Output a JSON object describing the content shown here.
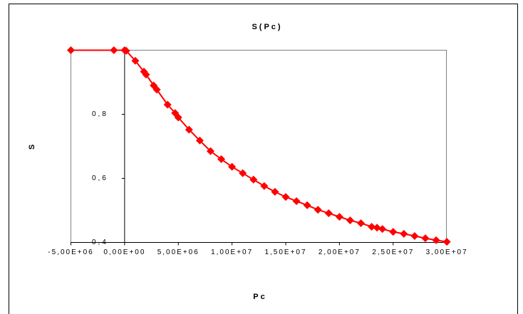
{
  "chart_data": {
    "type": "line",
    "title": "S(Pc)",
    "xlabel": "Pc",
    "ylabel": "S",
    "x": [
      -5000000,
      -1000000,
      0,
      150000,
      1000000,
      1800000,
      2000000,
      2700000,
      3000000,
      4000000,
      4700000,
      5000000,
      6000000,
      7000000,
      8000000,
      9000000,
      10000000,
      11000000,
      12000000,
      13000000,
      14000000,
      15000000,
      16000000,
      17000000,
      18000000,
      19000000,
      20000000,
      21000000,
      22000000,
      23000000,
      23500000,
      24000000,
      25000000,
      26000000,
      27000000,
      28000000,
      29000000,
      30000000
    ],
    "values": [
      1,
      1,
      1,
      0.998,
      0.967,
      0.933,
      0.924,
      0.89,
      0.877,
      0.83,
      0.804,
      0.79,
      0.752,
      0.718,
      0.685,
      0.66,
      0.636,
      0.616,
      0.596,
      0.576,
      0.558,
      0.542,
      0.529,
      0.516,
      0.502,
      0.491,
      0.48,
      0.469,
      0.46,
      0.449,
      0.446,
      0.442,
      0.433,
      0.427,
      0.42,
      0.413,
      0.407,
      0.402
    ],
    "color": "#ff0000",
    "xlim": [
      -5000000,
      35000000
    ],
    "ylim": [
      0.4,
      1.0
    ],
    "xticks": [
      {
        "value": -5000000,
        "label": "-5,00E+06"
      },
      {
        "value": 0,
        "label": "0,00E+00"
      },
      {
        "value": 5000000,
        "label": "5,00E+06"
      },
      {
        "value": 10000000,
        "label": "1,00E+07"
      },
      {
        "value": 15000000,
        "label": "1,50E+07"
      },
      {
        "value": 20000000,
        "label": "2,00E+07"
      },
      {
        "value": 25000000,
        "label": "2,50E+07"
      },
      {
        "value": 30000000,
        "label": "3,00E+07"
      }
    ],
    "yticks": [
      {
        "value": 0.4,
        "label": "0,4"
      },
      {
        "value": 0.6,
        "label": "0,6"
      },
      {
        "value": 0.8,
        "label": "0,8"
      }
    ]
  }
}
